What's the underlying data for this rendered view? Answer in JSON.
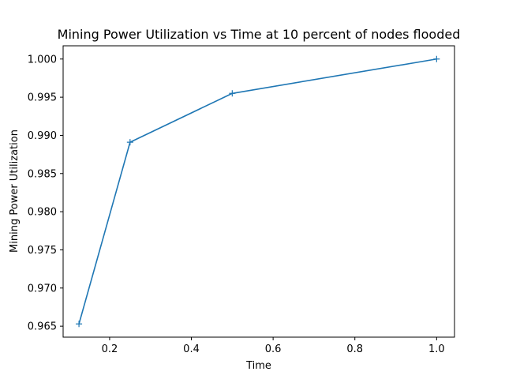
{
  "chart_data": {
    "type": "line",
    "title": "Mining Power Utilization vs Time at 10 percent of nodes flooded",
    "xlabel": "Time",
    "ylabel": "Mining Power Utilization",
    "x": [
      0.125,
      0.25,
      0.5,
      1.0
    ],
    "series": [
      {
        "values": [
          0.9653,
          0.9891,
          0.9955,
          1.0
        ],
        "color": "#1f77b4",
        "marker": "plus"
      }
    ],
    "xlim": [
      0.08625,
      1.04375
    ],
    "ylim": [
      0.963565,
      1.001735
    ],
    "xticks": [
      {
        "value": 0.2,
        "label": "0.2"
      },
      {
        "value": 0.4,
        "label": "0.4"
      },
      {
        "value": 0.6,
        "label": "0.6"
      },
      {
        "value": 0.8,
        "label": "0.8"
      },
      {
        "value": 1.0,
        "label": "1.0"
      }
    ],
    "yticks": [
      {
        "value": 0.965,
        "label": "0.965"
      },
      {
        "value": 0.97,
        "label": "0.970"
      },
      {
        "value": 0.975,
        "label": "0.975"
      },
      {
        "value": 0.98,
        "label": "0.980"
      },
      {
        "value": 0.985,
        "label": "0.985"
      },
      {
        "value": 0.99,
        "label": "0.990"
      },
      {
        "value": 0.995,
        "label": "0.995"
      },
      {
        "value": 1.0,
        "label": "1.000"
      }
    ],
    "grid": false,
    "legend": "none"
  }
}
